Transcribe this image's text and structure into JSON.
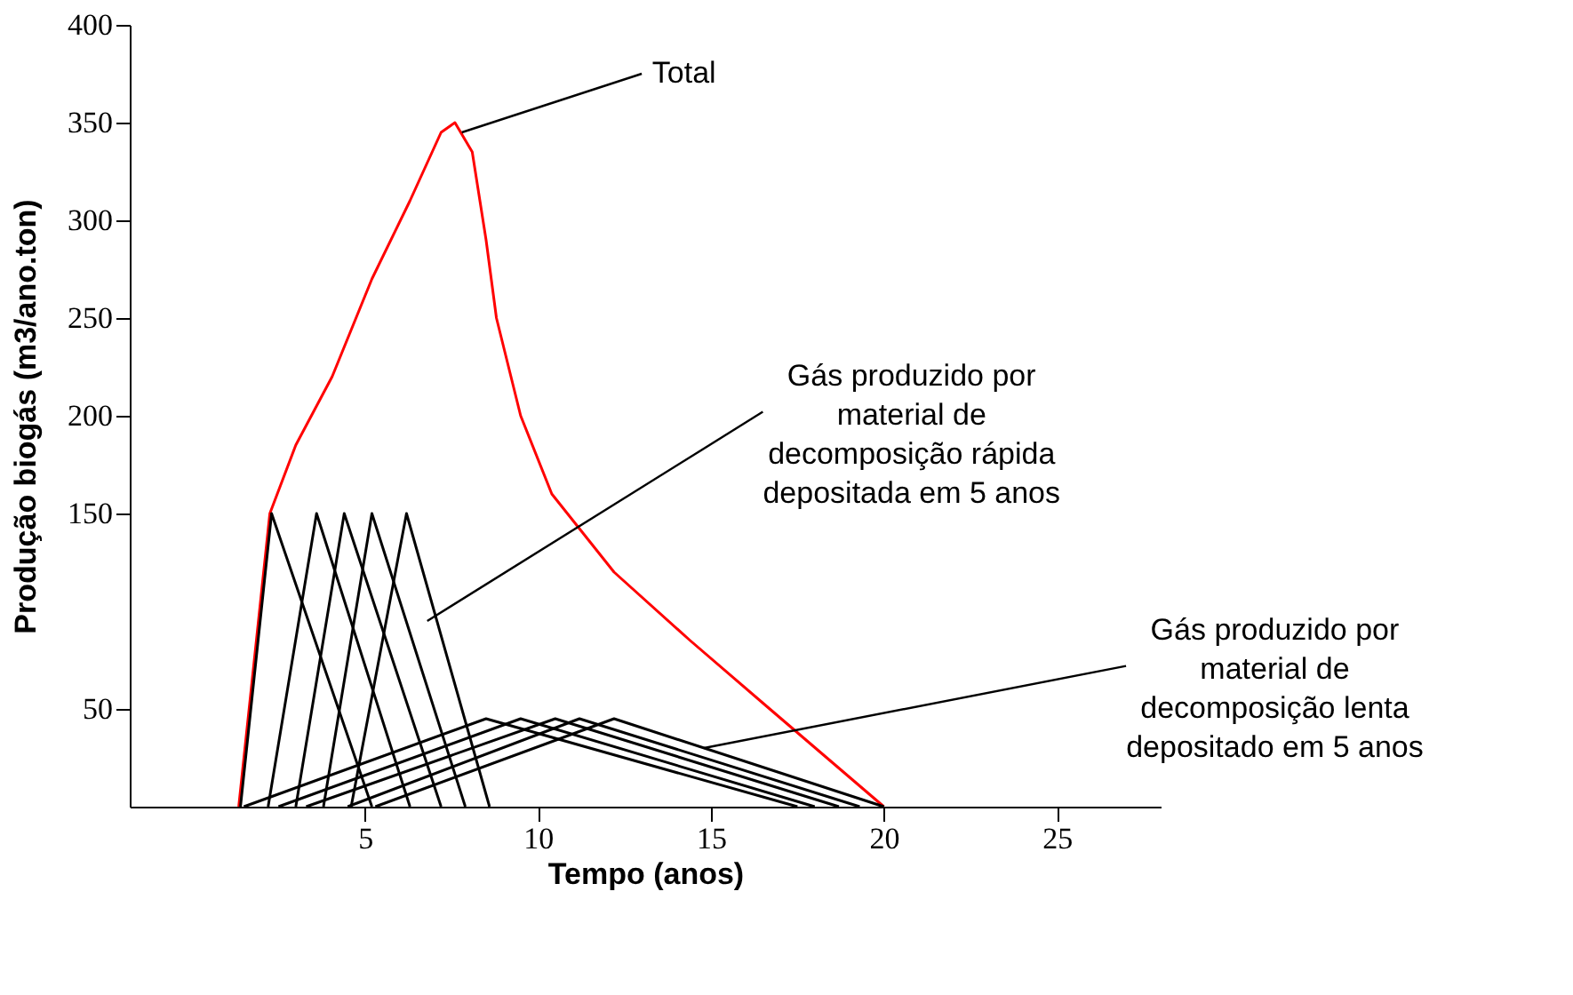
{
  "chart_data": {
    "type": "line",
    "xlabel": "Tempo (anos)",
    "ylabel": "Produção biogás (m3/ano.ton)",
    "xlim": [
      -1.8,
      28
    ],
    "ylim": [
      0,
      400
    ],
    "xticks": [
      5,
      10,
      15,
      20,
      25
    ],
    "yticks": [
      50,
      150,
      200,
      250,
      300,
      350,
      400
    ],
    "grid": false,
    "marker": "none",
    "line_style": "solid",
    "series": [
      {
        "color": "#ff0000",
        "x": [
          1.35,
          2.25,
          3.0,
          4.05,
          5.2,
          6.3,
          7.2,
          7.6,
          8.1,
          8.5,
          8.8,
          9.5,
          10.4,
          12.2,
          14.4,
          16.7,
          20.0
        ],
        "values": [
          0,
          150,
          185,
          220,
          270,
          310,
          345,
          350,
          335,
          290,
          250,
          200,
          160,
          120,
          85,
          50,
          0
        ]
      },
      {
        "color": "#000000",
        "x": [
          1.4,
          2.3,
          5.2
        ],
        "values": [
          0,
          150,
          0
        ]
      },
      {
        "color": "#000000",
        "x": [
          2.2,
          3.6,
          6.3
        ],
        "values": [
          0,
          150,
          0
        ]
      },
      {
        "color": "#000000",
        "x": [
          3.0,
          4.4,
          7.2
        ],
        "values": [
          0,
          150,
          0
        ]
      },
      {
        "color": "#000000",
        "x": [
          3.8,
          5.2,
          7.9
        ],
        "values": [
          0,
          150,
          0
        ]
      },
      {
        "color": "#000000",
        "x": [
          4.6,
          6.2,
          8.6
        ],
        "values": [
          0,
          150,
          0
        ]
      },
      {
        "color": "#000000",
        "x": [
          1.5,
          8.5,
          17.5
        ],
        "values": [
          0,
          45,
          0
        ]
      },
      {
        "color": "#000000",
        "x": [
          2.5,
          9.5,
          18.0
        ],
        "values": [
          0,
          45,
          0
        ]
      },
      {
        "color": "#000000",
        "x": [
          3.3,
          10.5,
          18.7
        ],
        "values": [
          0,
          45,
          0
        ]
      },
      {
        "color": "#000000",
        "x": [
          4.5,
          11.2,
          19.3
        ],
        "values": [
          0,
          45,
          0
        ]
      },
      {
        "color": "#000000",
        "x": [
          5.3,
          12.2,
          20.0
        ],
        "values": [
          0,
          45,
          0
        ]
      }
    ],
    "annotations": [
      {
        "text": "Total",
        "x": 7.8,
        "y": 345
      },
      {
        "text": "Gás produzido por\nmaterial de\ndecomposição rápida\ndepositada em 5 anos",
        "x": 6.8,
        "y": 95
      },
      {
        "text": "Gás produzido por\nmaterial de\ndecomposição lenta\ndepositado em 5 anos",
        "x": 14.8,
        "y": 30
      }
    ]
  }
}
